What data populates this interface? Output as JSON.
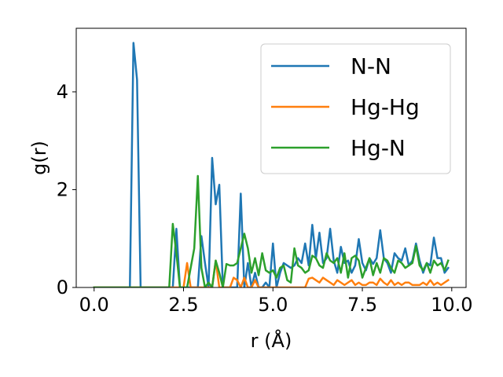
{
  "chart_data": {
    "type": "line",
    "title": "",
    "xlabel": "r (Å)",
    "ylabel": "g(r)",
    "xlim": [
      -0.5,
      10.4
    ],
    "ylim": [
      0,
      5.3
    ],
    "xticks": [
      0.0,
      2.5,
      5.0,
      7.5,
      10.0
    ],
    "xtick_labels": [
      "0.0",
      "2.5",
      "5.0",
      "7.5",
      "10.0"
    ],
    "yticks": [
      0,
      2,
      4
    ],
    "ytick_labels": [
      "0",
      "2",
      "4"
    ],
    "grid": false,
    "legend_position": "top-right",
    "x": [
      0.0,
      1.0,
      1.1,
      1.2,
      1.3,
      1.4,
      2.1,
      2.2,
      2.3,
      2.4,
      2.5,
      2.6,
      2.7,
      2.8,
      2.9,
      3.0,
      3.1,
      3.2,
      3.3,
      3.4,
      3.5,
      3.6,
      3.7,
      3.8,
      3.9,
      4.0,
      4.1,
      4.2,
      4.3,
      4.4,
      4.5,
      4.6,
      4.7,
      4.8,
      4.9,
      5.0,
      5.1,
      5.2,
      5.3,
      5.4,
      5.5,
      5.6,
      5.7,
      5.8,
      5.9,
      6.0,
      6.1,
      6.2,
      6.3,
      6.4,
      6.5,
      6.6,
      6.7,
      6.8,
      6.9,
      7.0,
      7.1,
      7.2,
      7.3,
      7.4,
      7.5,
      7.6,
      7.7,
      7.8,
      7.9,
      8.0,
      8.1,
      8.2,
      8.3,
      8.4,
      8.5,
      8.6,
      8.7,
      8.8,
      8.9,
      9.0,
      9.1,
      9.2,
      9.3,
      9.4,
      9.5,
      9.6,
      9.7,
      9.8,
      9.9
    ],
    "series": [
      {
        "name": "N-N",
        "color": "#1f77b4",
        "values": [
          0,
          0,
          5.0,
          4.25,
          0,
          0,
          0,
          0,
          1.2,
          0,
          0,
          0,
          0,
          0,
          0,
          1.05,
          0.5,
          0,
          2.65,
          1.7,
          2.1,
          0,
          0,
          0,
          0,
          0,
          1.92,
          0,
          0.5,
          0,
          0.3,
          0,
          0,
          0.1,
          0,
          0.9,
          0,
          0.3,
          0.5,
          0.45,
          0.4,
          0.45,
          0.6,
          0.5,
          0.9,
          0.45,
          1.28,
          0.6,
          1.12,
          0.5,
          0.6,
          1.2,
          0.55,
          0.3,
          0.83,
          0.5,
          0.55,
          0.3,
          0.45,
          0.99,
          0.5,
          0.35,
          0.6,
          0.48,
          0.6,
          1.17,
          0.6,
          0.5,
          0.3,
          0.7,
          0.6,
          0.55,
          0.8,
          0.45,
          0.55,
          0.9,
          0.55,
          0.3,
          0.5,
          0.45,
          1.02,
          0.6,
          0.6,
          0.3,
          0.4
        ]
      },
      {
        "name": "Hg-Hg",
        "color": "#ff7f0e",
        "values": [
          0,
          0,
          0,
          0,
          0,
          0,
          0,
          0,
          0,
          0,
          0,
          0.5,
          0,
          0,
          0,
          0,
          0,
          0,
          0,
          0.55,
          0,
          0,
          0,
          0,
          0.2,
          0.15,
          0,
          0.2,
          0,
          0,
          0.15,
          0,
          0,
          0,
          0,
          0,
          0,
          0,
          0,
          0,
          0,
          0,
          0,
          0,
          0,
          0.18,
          0.2,
          0.15,
          0.1,
          0.2,
          0.15,
          0.1,
          0.05,
          0.15,
          0.1,
          0.05,
          0.1,
          0.15,
          0.05,
          0.1,
          0.05,
          0.05,
          0.1,
          0.1,
          0.05,
          0.18,
          0.1,
          0.05,
          0.15,
          0.05,
          0.1,
          0.05,
          0.1,
          0.1,
          0.05,
          0.05,
          0.05,
          0.1,
          0.05,
          0.15,
          0.05,
          0.1,
          0.05,
          0.1,
          0.15
        ]
      },
      {
        "name": "Hg-N",
        "color": "#2ca02c",
        "values": [
          0,
          0,
          0,
          0,
          0,
          0,
          0,
          1.3,
          0.7,
          0,
          0,
          0,
          0.4,
          0.8,
          2.28,
          0.4,
          0,
          0.1,
          0,
          0.55,
          0.3,
          0,
          0.48,
          0.45,
          0.45,
          0.5,
          0.8,
          1.1,
          0.8,
          0.3,
          0.6,
          0.25,
          0.7,
          0.35,
          0.3,
          0.35,
          0.2,
          0.4,
          0.45,
          0.15,
          0.1,
          0.8,
          0.45,
          0.4,
          0.3,
          0.35,
          0.65,
          0.6,
          0.45,
          0.4,
          0.7,
          0.55,
          0.5,
          0.6,
          0.3,
          0.7,
          0.2,
          0.6,
          0.65,
          0.55,
          0.2,
          0.4,
          0.6,
          0.25,
          0.5,
          0.3,
          0.6,
          0.55,
          0.4,
          0.3,
          0.55,
          0.5,
          0.4,
          0.45,
          0.5,
          0.85,
          0.45,
          0.35,
          0.5,
          0.3,
          0.55,
          0.45,
          0.5,
          0.35,
          0.55
        ]
      }
    ]
  }
}
